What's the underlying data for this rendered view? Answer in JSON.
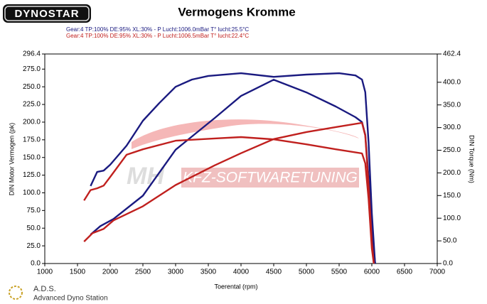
{
  "chart_data": {
    "type": "line",
    "logo": "DYNOSTAR",
    "title": "Vermogens Kromme",
    "header_lines": [
      {
        "text": "Gear:4 TP:100% DE:95% XL:30%   - P Lucht:1006.0mBar T° lucht:25.5°C",
        "color": "#1a1a80"
      },
      {
        "text": "Gear:4 TP:100% DE:95% XL:30%   - P Lucht:1006.5mBar T° lucht:22.4°C",
        "color": "#c0201e"
      }
    ],
    "xlabel": "Toerental (rpm)",
    "ylabel": "DIN Motor Vermogen (pk)",
    "y2label": "DIN Torque (Nm)",
    "watermark": [
      "MH",
      "KFZ-SOFTWARETUNING"
    ],
    "footer": [
      "A.D.S.",
      "Advanced Dyno Station"
    ],
    "xlim": [
      1000,
      7000
    ],
    "xticks": [
      1000,
      1500,
      2000,
      2500,
      3000,
      3500,
      4000,
      4500,
      5000,
      5500,
      6000,
      6500,
      7000
    ],
    "ylim": [
      0,
      296.4
    ],
    "yticks": [
      {
        "value": 0,
        "label": "0.0"
      },
      {
        "value": 25,
        "label": "25.0"
      },
      {
        "value": 50,
        "label": "50.0"
      },
      {
        "value": 75,
        "label": "75.0"
      },
      {
        "value": 100,
        "label": "100.0"
      },
      {
        "value": 125,
        "label": "125.0"
      },
      {
        "value": 150,
        "label": "150.0"
      },
      {
        "value": 175,
        "label": "175.0"
      },
      {
        "value": 200,
        "label": "200.0"
      },
      {
        "value": 225,
        "label": "225.0"
      },
      {
        "value": 250,
        "label": "250.0"
      },
      {
        "value": 275,
        "label": "275.0"
      },
      296.4
    ],
    "y2lim": [
      0,
      462.4
    ],
    "y2ticks": [
      {
        "value": 0,
        "label": "0.0"
      },
      {
        "value": 50,
        "label": "50.0"
      },
      {
        "value": 100,
        "label": "100.0"
      },
      {
        "value": 150,
        "label": "150.0"
      },
      {
        "value": 200,
        "label": "200.0"
      },
      {
        "value": 250,
        "label": "250.0"
      },
      {
        "value": 300,
        "label": "300.0"
      },
      {
        "value": 350,
        "label": "350.0"
      },
      {
        "value": 400,
        "label": "400.0"
      },
      462.4
    ],
    "grid": false,
    "series": [
      {
        "color": "#1a1a80",
        "axis": "y2",
        "x": [
          1700,
          1800,
          1900,
          2000,
          2250,
          2500,
          2750,
          3000,
          3250,
          3500,
          4000,
          4500,
          5000,
          5500,
          5750,
          5850,
          5900,
          5950,
          6000,
          6050
        ],
        "values": [
          171,
          202,
          205,
          218,
          260,
          315,
          354,
          390,
          406,
          414,
          420,
          412,
          417,
          420,
          415,
          406,
          378,
          268,
          111,
          0
        ]
      },
      {
        "color": "#1a1a80",
        "axis": "y",
        "x": [
          1700,
          1850,
          2050,
          2500,
          3000,
          3600,
          4000,
          4500,
          5000,
          5450,
          5750,
          5850,
          5900,
          5950,
          6000,
          6050
        ],
        "values": [
          41,
          53,
          63,
          96,
          161,
          206,
          237,
          260,
          242,
          222,
          207,
          200,
          182,
          122,
          51,
          0
        ]
      },
      {
        "color": "#c0201e",
        "axis": "y2",
        "x": [
          1600,
          1700,
          1800,
          1900,
          2000,
          2250,
          2500,
          3000,
          3600,
          4000,
          4500,
          5000,
          5450,
          5850,
          5900,
          5950,
          6000,
          6030
        ],
        "values": [
          139,
          162,
          166,
          172,
          191,
          240,
          252,
          271,
          276,
          279,
          274,
          263,
          252,
          243,
          221,
          143,
          33,
          0
        ]
      },
      {
        "color": "#c0201e",
        "axis": "y",
        "x": [
          1600,
          1730,
          1900,
          2050,
          2500,
          3000,
          3600,
          4000,
          4500,
          5000,
          5450,
          5850,
          5900,
          5950,
          6000,
          6030
        ],
        "values": [
          31,
          43,
          49,
          61,
          81,
          111,
          139,
          156,
          176,
          186,
          193,
          199,
          181,
          111,
          31,
          0
        ]
      }
    ]
  }
}
